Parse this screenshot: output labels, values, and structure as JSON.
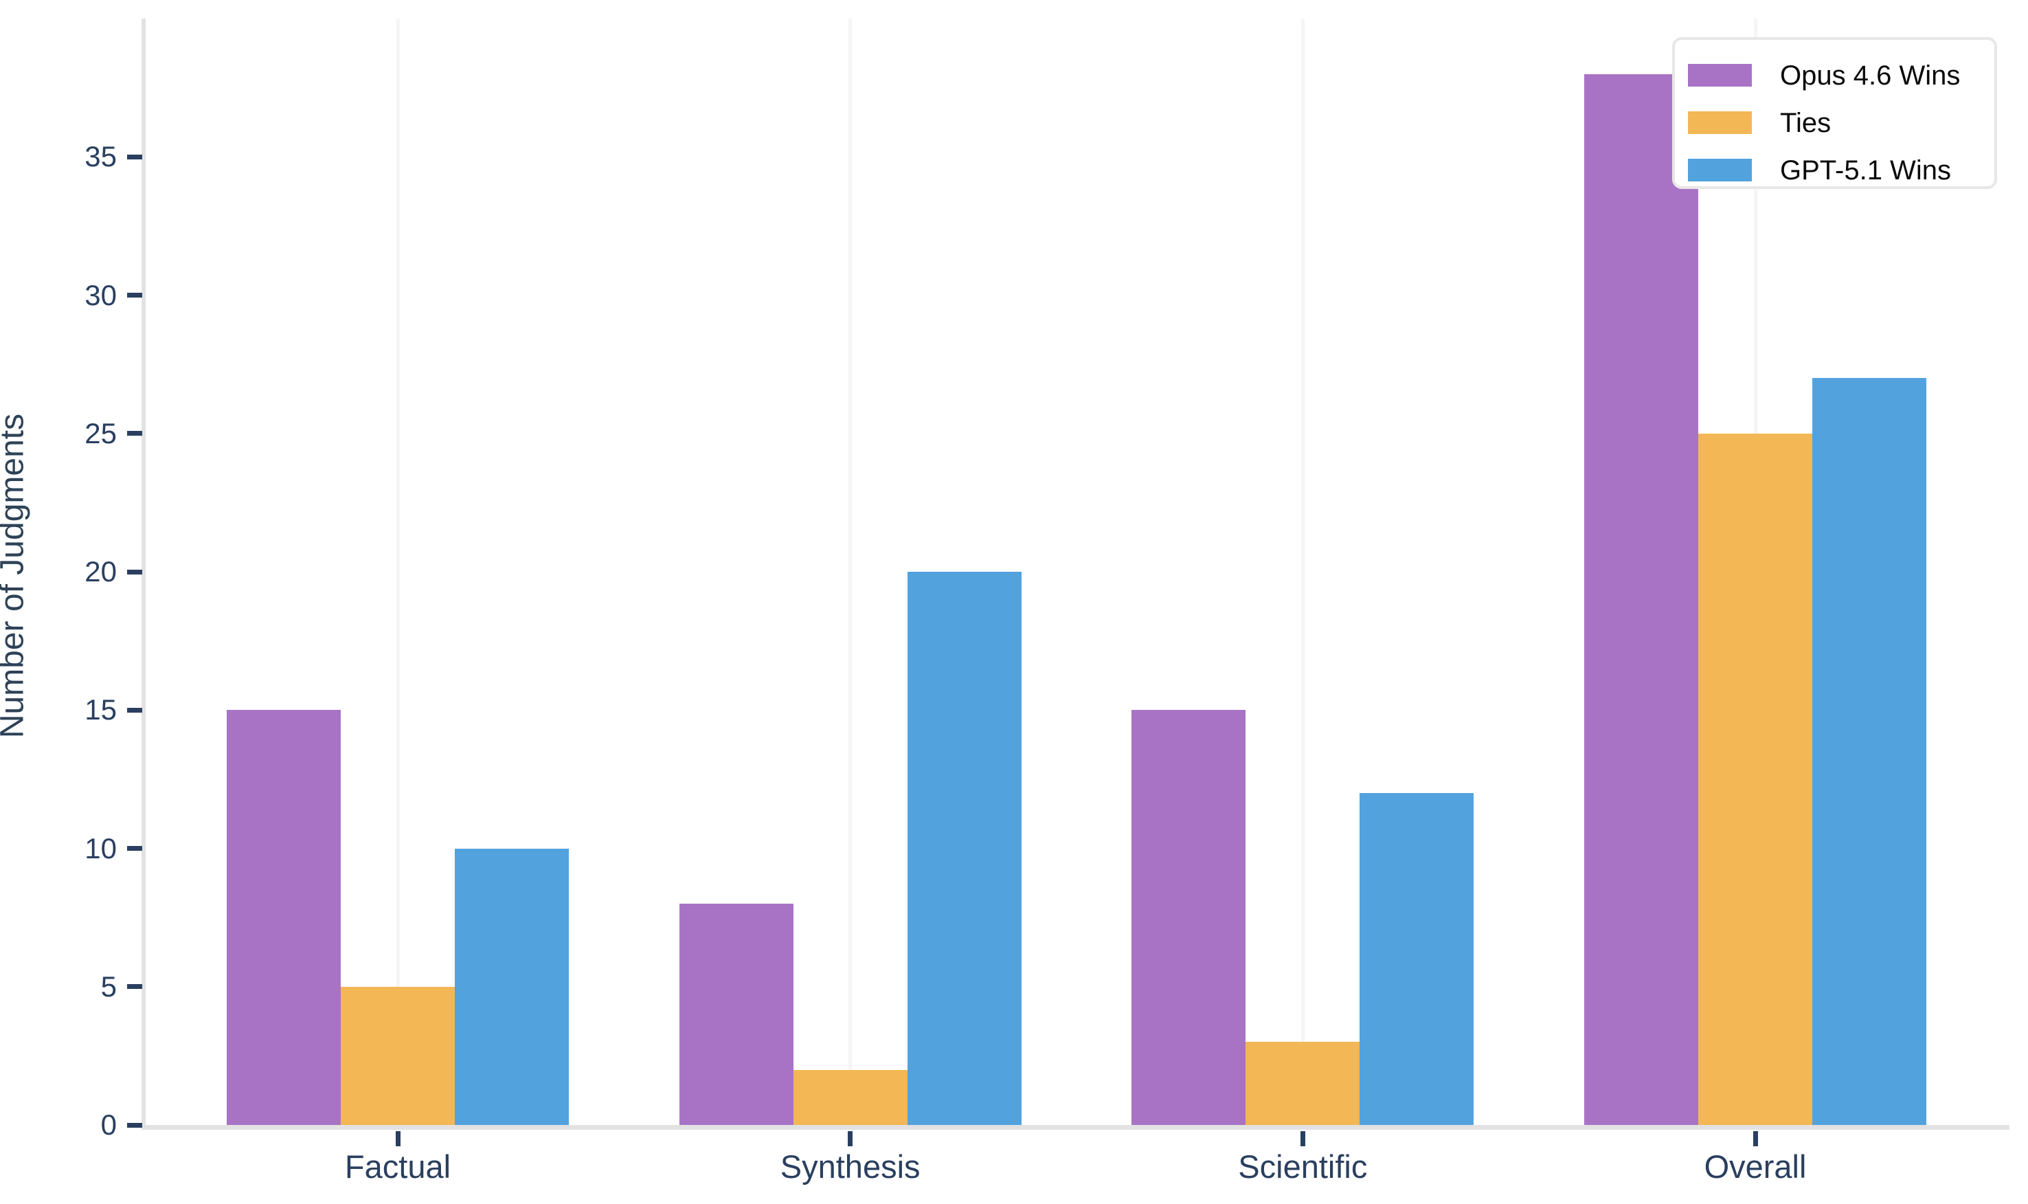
{
  "chart_data": {
    "type": "bar",
    "title": "",
    "categories": [
      "Factual",
      "Synthesis",
      "Scientific",
      "Overall"
    ],
    "series": [
      {
        "name": "Opus 4.6 Wins",
        "color": "#a873c5",
        "values": [
          15,
          8,
          15,
          38
        ]
      },
      {
        "name": "Ties",
        "color": "#f3b756",
        "values": [
          5,
          2,
          3,
          25
        ]
      },
      {
        "name": "GPT-5.1 Wins",
        "color": "#52a2de",
        "values": [
          10,
          20,
          12,
          27
        ]
      }
    ],
    "xlabel": "",
    "ylabel": "Number of Judgments",
    "ylim": [
      0,
      40
    ],
    "yticks": [
      0,
      5,
      10,
      15,
      20,
      25,
      30,
      35
    ],
    "grid": "vertical-only",
    "legend_position": "top-right"
  },
  "colors": {
    "axis_line": "#e2e2e2",
    "gridline": "#f5f5f5",
    "tick_text": "#2a3f5f",
    "legend_text": "#0a0a0a",
    "background": "#ffffff"
  }
}
